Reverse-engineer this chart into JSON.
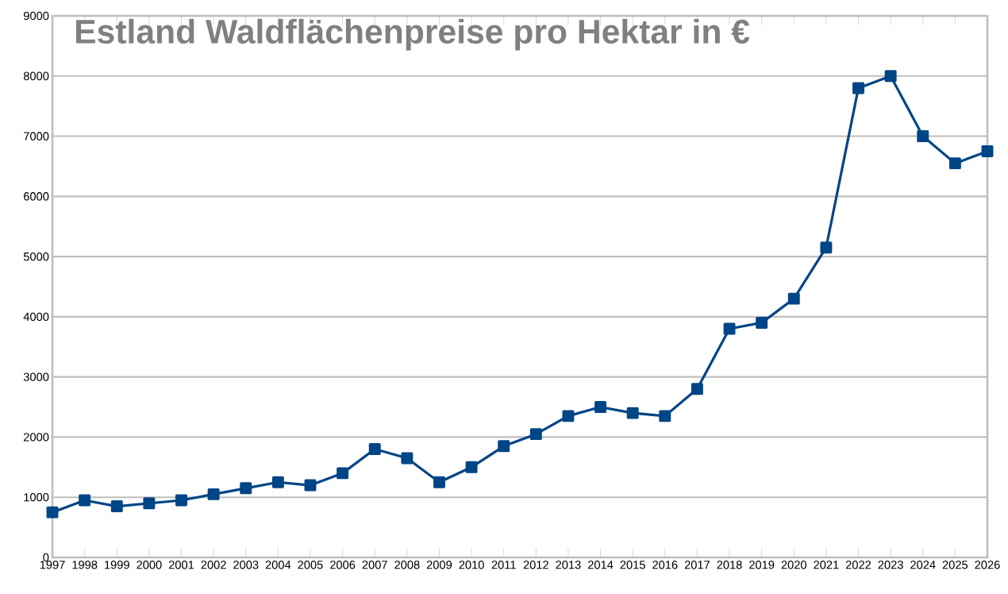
{
  "chart_data": {
    "type": "line",
    "title": "Estland Waldflächenpreise pro Hektar in €",
    "categories": [
      "1997",
      "1998",
      "1999",
      "2000",
      "2001",
      "2002",
      "2003",
      "2004",
      "2005",
      "2006",
      "2007",
      "2008",
      "2009",
      "2010",
      "2011",
      "2012",
      "2013",
      "2014",
      "2015",
      "2016",
      "2017",
      "2018",
      "2019",
      "2020",
      "2021",
      "2022",
      "2023",
      "2024",
      "2025",
      "2026"
    ],
    "series": [
      {
        "color": "#004586",
        "values": [
          750,
          950,
          850,
          900,
          950,
          1050,
          1150,
          1250,
          1200,
          1400,
          1800,
          1650,
          1250,
          1500,
          1850,
          2050,
          2350,
          2500,
          2400,
          2350,
          2800,
          3800,
          3900,
          4300,
          5150,
          7800,
          8000,
          7000,
          6550,
          6750
        ]
      }
    ],
    "ylim": [
      0,
      9000
    ],
    "yticks": [
      0,
      1000,
      2000,
      3000,
      4000,
      5000,
      6000,
      7000,
      8000,
      9000
    ],
    "grid": "y",
    "marker": "square",
    "line_style": "solid"
  }
}
